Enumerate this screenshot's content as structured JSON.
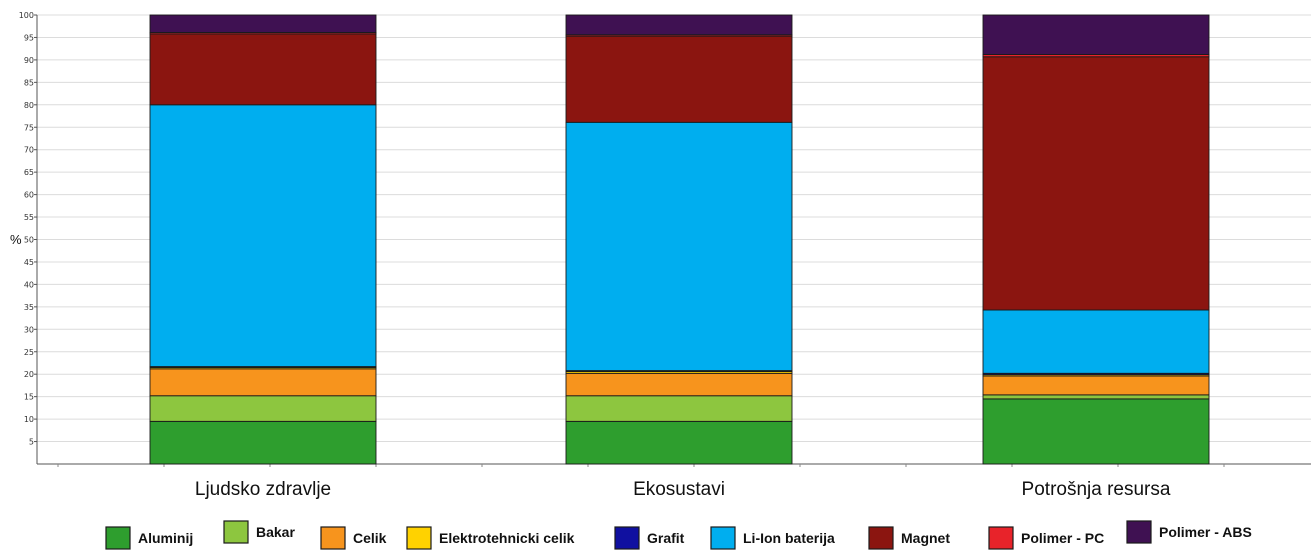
{
  "chart_data": {
    "type": "bar",
    "stacked": true,
    "ylabel": "%",
    "ylim": [
      0,
      100
    ],
    "yticks": [
      5,
      10,
      15,
      20,
      25,
      30,
      35,
      40,
      45,
      50,
      55,
      60,
      65,
      70,
      75,
      80,
      85,
      90,
      95,
      100
    ],
    "grid": true,
    "legend_position": "bottom",
    "categories": [
      "Ljudsko zdravlje",
      "Ekosustavi",
      "Potrošnja resursa"
    ],
    "series": [
      {
        "name": "Aluminij",
        "color": "#2E9E2E",
        "values": [
          9.5,
          9.5,
          14.5
        ]
      },
      {
        "name": "Bakar",
        "color": "#8DC63F",
        "values": [
          5.7,
          5.7,
          0.9
        ]
      },
      {
        "name": "Celik",
        "color": "#F7941D",
        "values": [
          6.0,
          5.0,
          4.2
        ]
      },
      {
        "name": "Elektrotehnicki celik",
        "color": "#FFD200",
        "values": [
          0.3,
          0.4,
          0.3
        ]
      },
      {
        "name": "Grafit",
        "color": "#1010A0",
        "values": [
          0.2,
          0.2,
          0.3
        ]
      },
      {
        "name": "Li-Ion baterija",
        "color": "#00AEEF",
        "values": [
          58.3,
          55.3,
          14.1
        ]
      },
      {
        "name": "Magnet",
        "color": "#8B1510",
        "values": [
          15.8,
          19.2,
          56.4
        ]
      },
      {
        "name": "Polimer - PC",
        "color": "#E8232A",
        "values": [
          0.3,
          0.3,
          0.5
        ]
      },
      {
        "name": "Polimer - ABS",
        "color": "#3F1152",
        "values": [
          3.9,
          4.4,
          8.8
        ]
      }
    ]
  }
}
